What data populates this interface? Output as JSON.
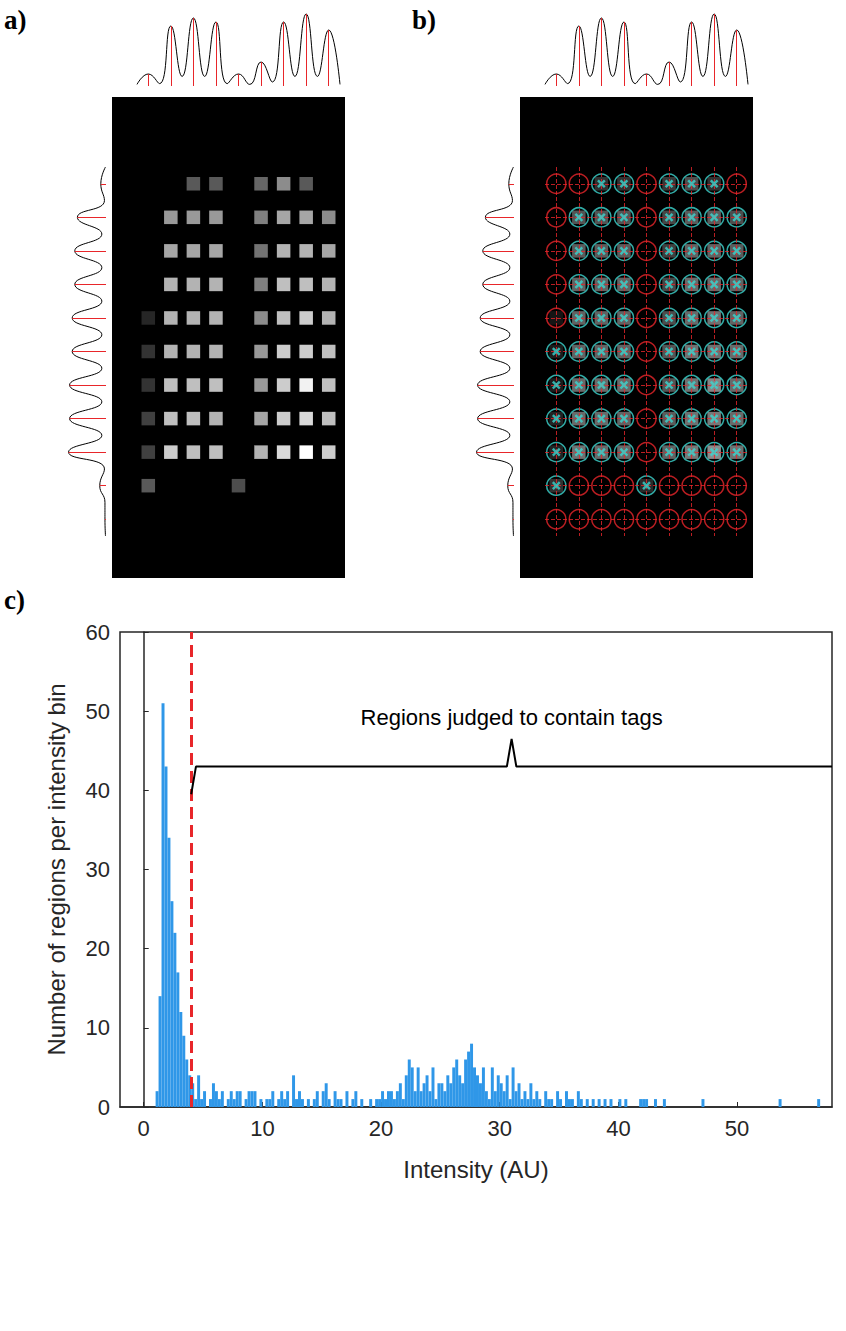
{
  "chart_data": [
    {
      "type": "image",
      "label": "a)",
      "spot_intensity": [
        [
          0,
          0,
          0.35,
          0.35,
          0,
          0.4,
          0.55,
          0.35,
          0
        ],
        [
          0,
          0.6,
          0.6,
          0.6,
          0,
          0.5,
          0.65,
          0.65,
          0.55
        ],
        [
          0,
          0.65,
          0.65,
          0.65,
          0,
          0.45,
          0.7,
          0.7,
          0.65
        ],
        [
          0,
          0.7,
          0.7,
          0.7,
          0,
          0.5,
          0.75,
          0.75,
          0.7
        ],
        [
          0.15,
          0.7,
          0.7,
          0.7,
          0,
          0.55,
          0.75,
          0.8,
          0.7
        ],
        [
          0.2,
          0.7,
          0.7,
          0.7,
          0,
          0.6,
          0.8,
          0.8,
          0.75
        ],
        [
          0.2,
          0.75,
          0.75,
          0.75,
          0,
          0.6,
          0.8,
          0.95,
          0.75
        ],
        [
          0.25,
          0.75,
          0.75,
          0.7,
          0,
          0.65,
          0.8,
          0.85,
          0.75
        ],
        [
          0.25,
          0.8,
          0.75,
          0.75,
          0,
          0.7,
          0.85,
          1.0,
          0.8
        ],
        [
          0.35,
          0,
          0,
          0,
          0.3,
          0,
          0,
          0,
          0
        ],
        [
          0,
          0,
          0,
          0,
          0,
          0,
          0,
          0,
          0
        ]
      ],
      "column_profile": [
        0.02,
        0.15,
        0.03,
        0.75,
        0.12,
        0.85,
        0.12,
        0.8,
        0.03,
        0.15,
        0.02,
        0.3,
        0.05,
        0.8,
        0.12,
        0.9,
        0.12,
        0.7,
        0.02
      ],
      "row_profile": [
        0.01,
        0.1,
        0.03,
        0.55,
        0.08,
        0.6,
        0.08,
        0.6,
        0.08,
        0.65,
        0.08,
        0.65,
        0.08,
        0.7,
        0.08,
        0.7,
        0.08,
        0.72,
        0.03,
        0.12,
        0.02,
        0.02,
        0.01
      ],
      "profile_range": [
        0,
        1
      ],
      "profile_color": "#000000",
      "peak_color": "#e8262a"
    },
    {
      "type": "image",
      "label": "b)",
      "spot_intensity": [
        [
          0,
          0,
          0.35,
          0.35,
          0,
          0.4,
          0.55,
          0.35,
          0
        ],
        [
          0,
          0.6,
          0.6,
          0.6,
          0,
          0.5,
          0.65,
          0.65,
          0.55
        ],
        [
          0,
          0.65,
          0.65,
          0.65,
          0,
          0.45,
          0.7,
          0.7,
          0.65
        ],
        [
          0,
          0.7,
          0.7,
          0.7,
          0,
          0.5,
          0.75,
          0.75,
          0.7
        ],
        [
          0.15,
          0.7,
          0.7,
          0.7,
          0,
          0.55,
          0.75,
          0.8,
          0.7
        ],
        [
          0.2,
          0.7,
          0.7,
          0.7,
          0,
          0.6,
          0.8,
          0.8,
          0.75
        ],
        [
          0.2,
          0.75,
          0.75,
          0.75,
          0,
          0.6,
          0.8,
          0.95,
          0.75
        ],
        [
          0.25,
          0.75,
          0.75,
          0.7,
          0,
          0.65,
          0.8,
          0.85,
          0.75
        ],
        [
          0.25,
          0.8,
          0.75,
          0.75,
          0,
          0.7,
          0.85,
          1.0,
          0.8
        ],
        [
          0.35,
          0,
          0,
          0,
          0.3,
          0,
          0,
          0,
          0
        ],
        [
          0,
          0,
          0,
          0,
          0,
          0,
          0,
          0,
          0
        ]
      ],
      "tags": [
        [
          false,
          false,
          true,
          true,
          false,
          true,
          true,
          true,
          false
        ],
        [
          false,
          true,
          true,
          true,
          false,
          true,
          true,
          true,
          true
        ],
        [
          false,
          true,
          true,
          true,
          false,
          true,
          true,
          true,
          true
        ],
        [
          false,
          true,
          true,
          true,
          false,
          true,
          true,
          true,
          true
        ],
        [
          false,
          true,
          true,
          true,
          false,
          true,
          true,
          true,
          true
        ],
        [
          true,
          true,
          true,
          true,
          false,
          true,
          true,
          true,
          true
        ],
        [
          true,
          true,
          true,
          true,
          false,
          true,
          true,
          true,
          true
        ],
        [
          true,
          true,
          true,
          true,
          false,
          true,
          true,
          true,
          true
        ],
        [
          true,
          true,
          true,
          true,
          false,
          true,
          true,
          true,
          true
        ],
        [
          true,
          false,
          false,
          false,
          true,
          false,
          false,
          false,
          false
        ],
        [
          false,
          false,
          false,
          false,
          false,
          false,
          false,
          false,
          false
        ]
      ],
      "markers": {
        "tag": {
          "color": "#3dd6d0",
          "marker": "x"
        },
        "empty": {
          "color": "#e8262a",
          "marker": "circle"
        }
      },
      "column_profile": [
        0.02,
        0.15,
        0.03,
        0.75,
        0.12,
        0.85,
        0.12,
        0.8,
        0.03,
        0.15,
        0.02,
        0.3,
        0.05,
        0.8,
        0.12,
        0.9,
        0.12,
        0.7,
        0.02
      ],
      "row_profile": [
        0.01,
        0.1,
        0.03,
        0.55,
        0.08,
        0.6,
        0.08,
        0.6,
        0.08,
        0.65,
        0.08,
        0.65,
        0.08,
        0.7,
        0.08,
        0.7,
        0.08,
        0.72,
        0.03,
        0.12,
        0.02,
        0.02,
        0.01
      ],
      "profile_range": [
        0,
        1
      ],
      "profile_color": "#000000",
      "peak_color": "#e8262a"
    },
    {
      "type": "histogram",
      "label": "c)",
      "x_label": "Intensity (AU)",
      "y_label": "Number of regions per intensity bin",
      "color": "#2f97e8",
      "xlim": [
        -2,
        58
      ],
      "xticks": [
        0,
        10,
        20,
        30,
        40,
        50
      ],
      "ylim": [
        0,
        60
      ],
      "yticks": [
        0,
        10,
        20,
        30,
        40,
        50,
        60
      ],
      "threshold": {
        "value": 4,
        "color": "#e8262a"
      },
      "annotation": {
        "text": "Regions judged to contain tags",
        "x_from": 4,
        "x_to": 58,
        "y": 43
      },
      "bins": [
        1,
        1.25,
        1.5,
        1.75,
        2,
        2.25,
        2.5,
        2.75,
        3,
        3.25,
        3.5,
        3.75,
        4,
        4.25,
        4.5,
        4.75,
        5,
        5.25,
        5.5,
        5.75,
        6,
        6.25,
        6.5,
        6.75,
        7,
        7.25,
        7.5,
        7.75,
        8,
        8.25,
        8.5,
        8.75,
        9,
        9.25,
        9.5,
        9.75,
        10,
        10.25,
        10.5,
        10.75,
        11,
        11.25,
        11.5,
        11.75,
        12,
        12.25,
        12.5,
        12.75,
        13,
        13.25,
        13.5,
        13.75,
        14,
        14.25,
        14.5,
        14.75,
        15,
        15.25,
        15.5,
        15.75,
        16,
        16.25,
        16.5,
        16.75,
        17,
        17.25,
        17.5,
        17.75,
        18,
        18.25,
        18.5,
        18.75,
        19,
        19.25,
        19.5,
        19.75,
        20,
        20.25,
        20.5,
        20.75,
        21,
        21.25,
        21.5,
        21.75,
        22,
        22.25,
        22.5,
        22.75,
        23,
        23.25,
        23.5,
        23.75,
        24,
        24.25,
        24.5,
        24.75,
        25,
        25.25,
        25.5,
        25.75,
        26,
        26.25,
        26.5,
        26.75,
        27,
        27.25,
        27.5,
        27.75,
        28,
        28.25,
        28.5,
        28.75,
        29,
        29.25,
        29.5,
        29.75,
        30,
        30.25,
        30.5,
        30.75,
        31,
        31.25,
        31.5,
        31.75,
        32,
        32.25,
        32.5,
        32.75,
        33,
        33.25,
        33.5,
        33.75,
        34,
        34.25,
        34.5,
        34.75,
        35,
        35.25,
        35.5,
        35.75,
        36,
        36.25,
        36.5,
        36.75,
        37,
        37.25,
        37.5,
        37.75,
        38,
        38.25,
        38.5,
        38.75,
        39,
        39.25,
        39.5,
        39.75,
        40,
        40.25,
        40.5,
        40.75,
        41,
        41.25,
        41.5,
        41.75,
        42,
        42.25,
        42.5,
        42.75,
        43,
        43.25,
        43.5,
        43.75,
        44,
        44.25,
        44.5,
        44.75,
        45,
        45.25,
        45.5,
        45.75,
        46,
        46.25,
        46.5,
        46.75,
        47,
        47.25,
        47.5,
        47.75,
        48,
        48.25,
        48.5,
        48.75,
        49,
        49.25,
        49.5,
        49.75,
        50,
        50.25,
        50.5,
        50.75,
        51,
        51.25,
        51.5,
        51.75,
        52,
        52.25,
        52.5,
        52.75,
        53,
        53.25,
        53.5,
        53.75,
        54,
        54.25,
        54.5,
        54.75,
        55,
        55.25,
        55.5,
        55.75,
        56,
        56.25,
        56.5,
        56.75,
        57
      ],
      "counts": [
        2,
        14,
        51,
        43,
        34,
        26,
        22,
        17,
        12,
        9,
        6,
        4,
        3,
        1,
        4,
        1,
        2,
        0,
        1,
        3,
        2,
        1,
        2,
        0,
        1,
        2,
        1,
        2,
        2,
        0,
        1,
        2,
        2,
        2,
        0,
        1,
        0,
        1,
        1,
        2,
        0,
        1,
        2,
        1,
        2,
        0,
        4,
        1,
        2,
        1,
        0,
        1,
        0,
        1,
        2,
        0,
        2,
        3,
        1,
        0,
        2,
        1,
        1,
        0,
        2,
        0,
        1,
        2,
        0,
        1,
        0,
        0,
        1,
        0,
        1,
        1,
        2,
        1,
        2,
        2,
        1,
        2,
        3,
        1,
        4,
        6,
        5,
        2,
        5,
        2,
        3,
        4,
        2,
        5,
        1,
        3,
        3,
        2,
        4,
        3,
        5,
        6,
        4,
        3,
        6,
        7,
        8,
        5,
        4,
        3,
        5,
        2,
        1,
        5,
        2,
        4,
        3,
        2,
        4,
        1,
        5,
        2,
        3,
        1,
        2,
        1,
        3,
        1,
        2,
        1,
        0,
        2,
        1,
        1,
        0,
        2,
        1,
        0,
        2,
        1,
        1,
        0,
        2,
        1,
        0,
        1,
        0,
        1,
        0,
        1,
        0,
        1,
        0,
        1,
        0,
        0,
        1,
        0,
        1,
        0,
        0,
        0,
        0,
        1,
        1,
        1,
        0,
        0,
        1,
        0,
        0,
        1,
        0,
        0,
        0,
        0,
        0,
        0,
        0,
        0,
        0,
        0,
        0,
        0,
        1,
        0,
        0,
        0,
        0,
        0,
        0,
        0,
        0,
        0,
        0,
        0,
        0,
        0,
        0,
        0,
        0,
        0,
        0,
        0,
        0,
        0,
        0,
        0,
        0,
        0,
        1,
        0,
        0,
        0,
        0,
        0,
        0,
        0,
        0,
        0,
        0,
        0,
        0,
        1
      ]
    }
  ]
}
